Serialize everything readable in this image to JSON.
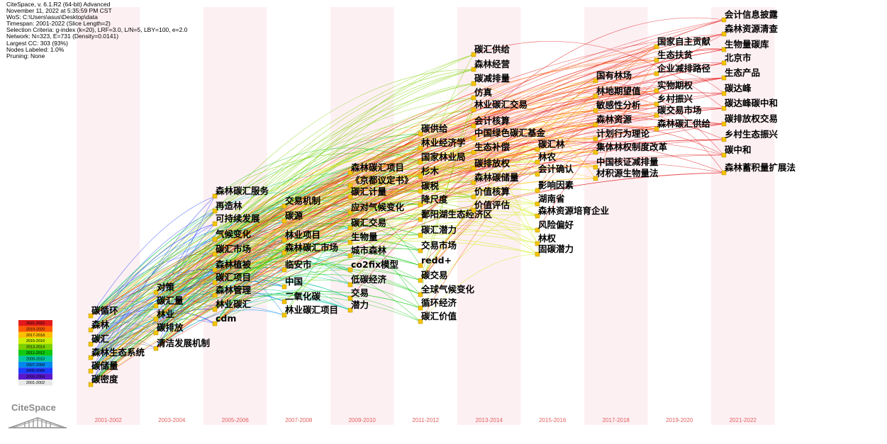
{
  "header": {
    "lines": [
      "CiteSpace, v. 6.1.R2 (64-bit) Advanced",
      "November 11, 2022 at 5:35:59 PM CST",
      "WoS: C:\\Users\\asus\\Desktop\\data",
      "Timespan: 2001-2022 (Slice Length=2)",
      "Selection Criteria: g-index (k=20), LRF=3.0, L/N=5, LBY=100, e=2.0",
      "Network: N=323, E=731 (Density=0.0141)",
      "Largest CC: 303 (93%)",
      "Nodes Labeled: 1.0%",
      "Pruning: None"
    ]
  },
  "timeline": {
    "slices": [
      "2001-2002",
      "2003-2004",
      "2005-2006",
      "2007-2008",
      "2009-2010",
      "2011-2012",
      "2013-2014",
      "2015-2016",
      "2017-2018",
      "2019-2020",
      "2021-2022"
    ],
    "slice_label_color": "#e06060",
    "band_color": "#fdf0f3"
  },
  "legend": {
    "entries": [
      {
        "label": "2021-2022",
        "color": "#e31a1c"
      },
      {
        "label": "2019-2020",
        "color": "#ff5a00"
      },
      {
        "label": "2017-2018",
        "color": "#ffc000"
      },
      {
        "label": "2015-2016",
        "color": "#ccee00"
      },
      {
        "label": "2013-2014",
        "color": "#7cd000"
      },
      {
        "label": "2011-2012",
        "color": "#11c811"
      },
      {
        "label": "2009-2010",
        "color": "#00c6a0"
      },
      {
        "label": "2007-2008",
        "color": "#0088ee"
      },
      {
        "label": "2005-2006",
        "color": "#1e3cff"
      },
      {
        "label": "2003-2004",
        "color": "#5a18cc"
      },
      {
        "label": "2001-2002",
        "color": "#e8e8e8"
      }
    ]
  },
  "logo": {
    "text": "CiteSpace"
  },
  "node_color": "#f5c400",
  "nodes": [
    {
      "label": "碳循环",
      "slice": 0
    },
    {
      "label": "森林",
      "slice": 0
    },
    {
      "label": "碳汇",
      "slice": 0
    },
    {
      "label": "森林生态系统",
      "slice": 0
    },
    {
      "label": "碳储量",
      "slice": 0
    },
    {
      "label": "碳密度",
      "slice": 0
    },
    {
      "label": "对策",
      "slice": 1
    },
    {
      "label": "碳汇量",
      "slice": 1
    },
    {
      "label": "林业",
      "slice": 1
    },
    {
      "label": "碳排放",
      "slice": 1
    },
    {
      "label": "清洁发展机制",
      "slice": 1
    },
    {
      "label": "森林碳汇服务",
      "slice": 2
    },
    {
      "label": "再造林",
      "slice": 2
    },
    {
      "label": "可持续发展",
      "slice": 2
    },
    {
      "label": "气候变化",
      "slice": 2
    },
    {
      "label": "碳汇市场",
      "slice": 2
    },
    {
      "label": "森林植被",
      "slice": 2
    },
    {
      "label": "碳汇项目",
      "slice": 2
    },
    {
      "label": "森林管理",
      "slice": 2
    },
    {
      "label": "林业碳汇",
      "slice": 2
    },
    {
      "label": "cdm",
      "slice": 2
    },
    {
      "label": "交易机制",
      "slice": 3
    },
    {
      "label": "碳源",
      "slice": 3
    },
    {
      "label": "林业项目",
      "slice": 3
    },
    {
      "label": "森林碳汇市场",
      "slice": 3
    },
    {
      "label": "临安市",
      "slice": 3
    },
    {
      "label": "中国",
      "slice": 3
    },
    {
      "label": "二氧化碳",
      "slice": 3
    },
    {
      "label": "林业碳汇项目",
      "slice": 3
    },
    {
      "label": "森林碳汇项目",
      "slice": 4
    },
    {
      "label": "《京都议定书》",
      "slice": 4
    },
    {
      "label": "碳汇计量",
      "slice": 4
    },
    {
      "label": "应对气候变化",
      "slice": 4
    },
    {
      "label": "碳汇交易",
      "slice": 4
    },
    {
      "label": "生物量",
      "slice": 4
    },
    {
      "label": "城市森林",
      "slice": 4
    },
    {
      "label": "co2fix模型",
      "slice": 4
    },
    {
      "label": "低碳经济",
      "slice": 4
    },
    {
      "label": "交易",
      "slice": 4
    },
    {
      "label": "潜力",
      "slice": 4
    },
    {
      "label": "碳供给",
      "slice": 5
    },
    {
      "label": "林业经济学",
      "slice": 5
    },
    {
      "label": "国家林业局",
      "slice": 5
    },
    {
      "label": "杉木",
      "slice": 5
    },
    {
      "label": "碳税",
      "slice": 5
    },
    {
      "label": "降尺度",
      "slice": 5
    },
    {
      "label": "鄱阳湖生态经济区",
      "slice": 5
    },
    {
      "label": "碳汇潜力",
      "slice": 5
    },
    {
      "label": "交易市场",
      "slice": 5
    },
    {
      "label": "redd+",
      "slice": 5
    },
    {
      "label": "碳交易",
      "slice": 5
    },
    {
      "label": "全球气候变化",
      "slice": 5
    },
    {
      "label": "循环经济",
      "slice": 5
    },
    {
      "label": "碳汇价值",
      "slice": 5
    },
    {
      "label": "碳汇供给",
      "slice": 6
    },
    {
      "label": "森林经营",
      "slice": 6
    },
    {
      "label": "碳减排量",
      "slice": 6
    },
    {
      "label": "仿真",
      "slice": 6
    },
    {
      "label": "林业碳汇交易",
      "slice": 6
    },
    {
      "label": "会计核算",
      "slice": 6
    },
    {
      "label": "中国绿色碳汇基金",
      "slice": 6
    },
    {
      "label": "生态补偿",
      "slice": 6
    },
    {
      "label": "碳排放权",
      "slice": 6
    },
    {
      "label": "森林碳储量",
      "slice": 6
    },
    {
      "label": "价值核算",
      "slice": 6
    },
    {
      "label": "价值评估",
      "slice": 6
    },
    {
      "label": "碳汇林",
      "slice": 7
    },
    {
      "label": "林农",
      "slice": 7
    },
    {
      "label": "会计确认",
      "slice": 7
    },
    {
      "label": "影响因素",
      "slice": 7
    },
    {
      "label": "湖南省",
      "slice": 7
    },
    {
      "label": "森林资源培育企业",
      "slice": 7
    },
    {
      "label": "风险偏好",
      "slice": 7
    },
    {
      "label": "林权",
      "slice": 7
    },
    {
      "label": "固碳潜力",
      "slice": 7
    },
    {
      "label": "国有林场",
      "slice": 8
    },
    {
      "label": "林地期望值",
      "slice": 8
    },
    {
      "label": "敏感性分析",
      "slice": 8
    },
    {
      "label": "森林资源",
      "slice": 8
    },
    {
      "label": "计划行为理论",
      "slice": 8
    },
    {
      "label": "集体林权制度改革",
      "slice": 8
    },
    {
      "label": "中国核证减排量",
      "slice": 8
    },
    {
      "label": "材积源生物量法",
      "slice": 8
    },
    {
      "label": "国家自主贡献",
      "slice": 9
    },
    {
      "label": "生态扶贫",
      "slice": 9
    },
    {
      "label": "企业减排路径",
      "slice": 9
    },
    {
      "label": "实物期权",
      "slice": 9
    },
    {
      "label": "乡村振兴",
      "slice": 9
    },
    {
      "label": "碳交易市场",
      "slice": 9
    },
    {
      "label": "森林碳汇供给",
      "slice": 9
    },
    {
      "label": "会计信息披露",
      "slice": 10
    },
    {
      "label": "森林资源清查",
      "slice": 10
    },
    {
      "label": "生物量碳库",
      "slice": 10
    },
    {
      "label": "北京市",
      "slice": 10
    },
    {
      "label": "生态产品",
      "slice": 10
    },
    {
      "label": "碳达峰",
      "slice": 10
    },
    {
      "label": "碳达峰碳中和",
      "slice": 10
    },
    {
      "label": "碳排放权交易",
      "slice": 10
    },
    {
      "label": "乡村生态振兴",
      "slice": 10
    },
    {
      "label": "碳中和",
      "slice": 10
    },
    {
      "label": "森林蓄积量扩展法",
      "slice": 10
    }
  ]
}
